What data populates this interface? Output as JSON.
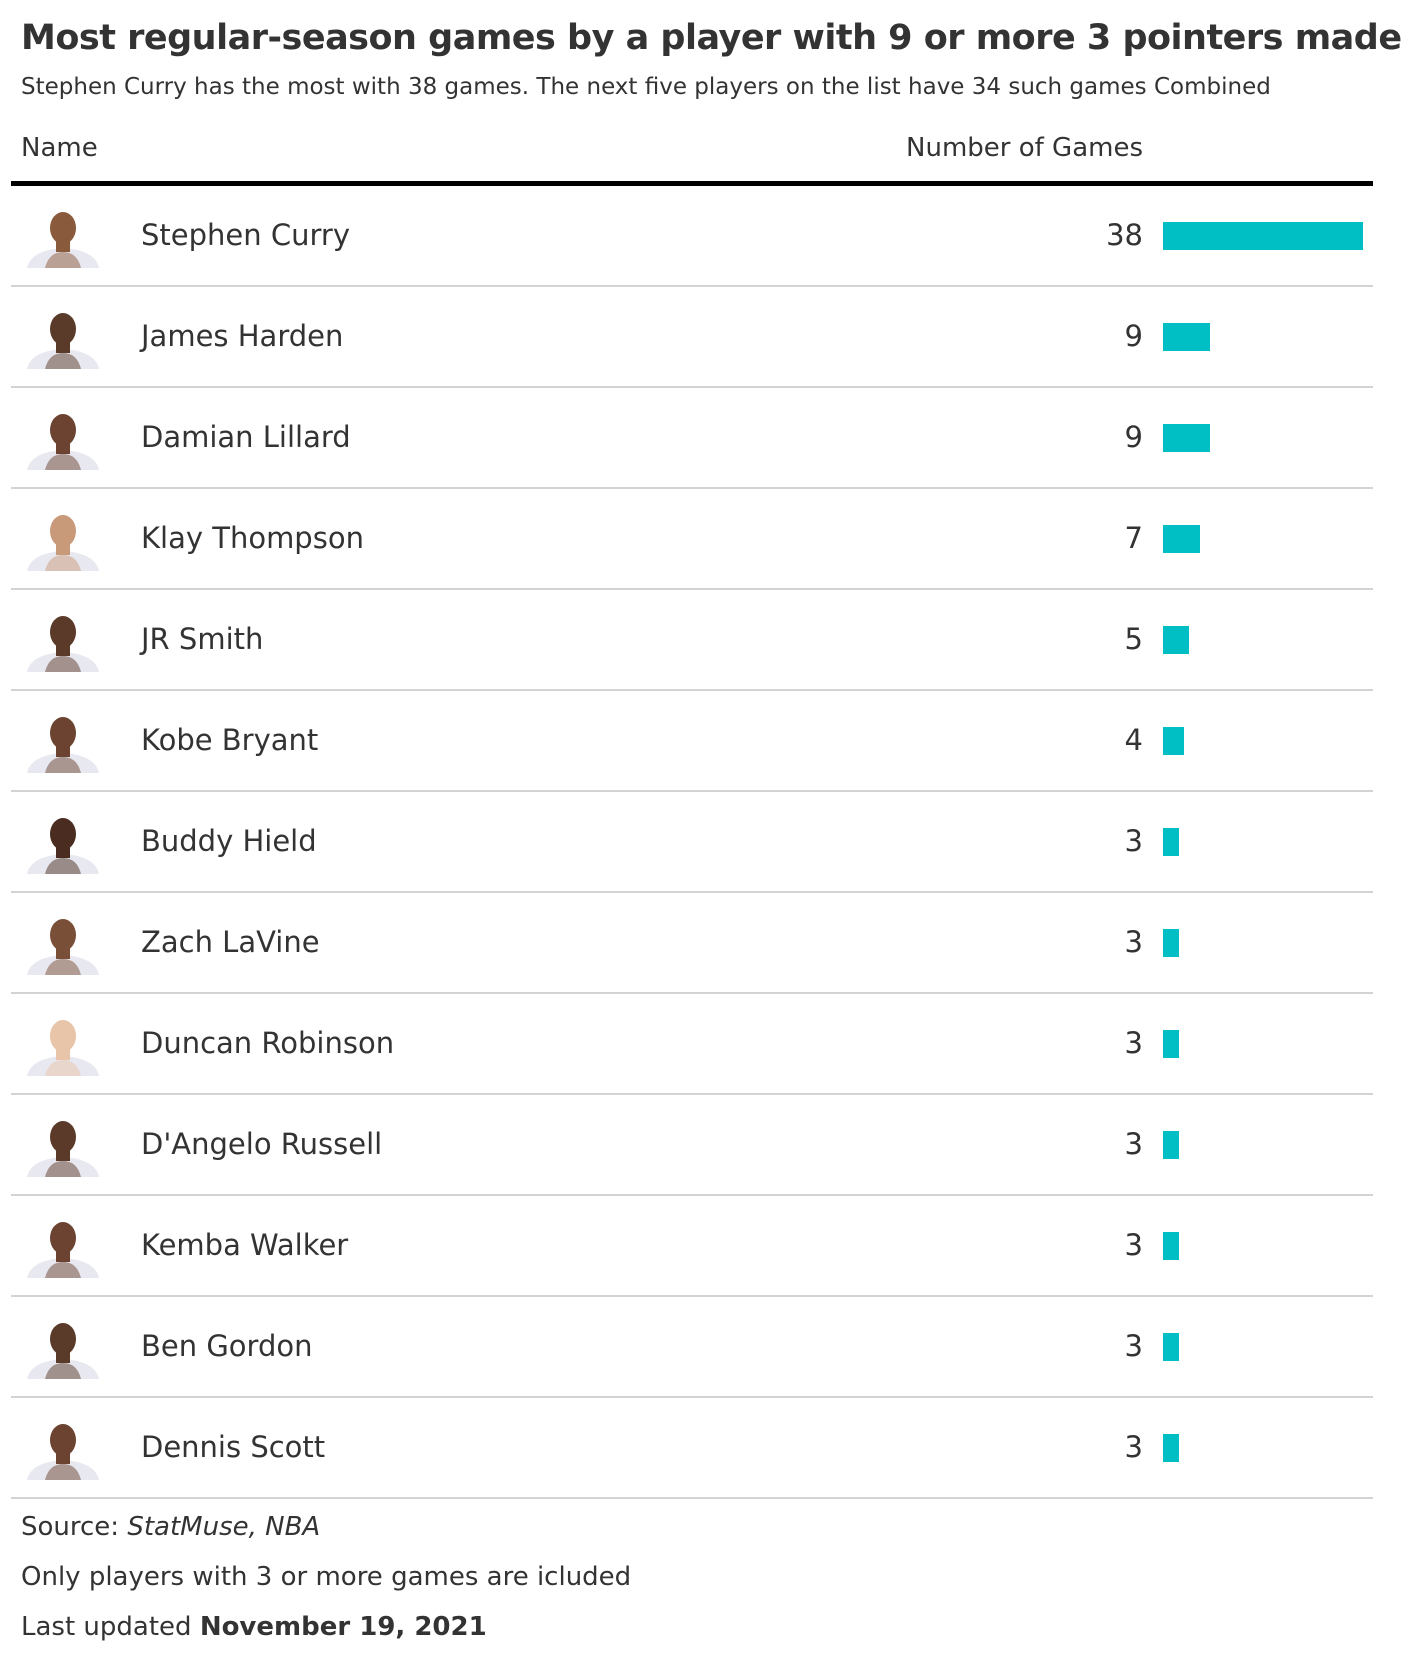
{
  "header": {
    "title": "Most regular-season games by a player with 9 or more 3 pointers made",
    "subtitle": "Stephen Curry has the most with 38 games. The next five players on the list have 34 such games Combined"
  },
  "table": {
    "columns": [
      "Name",
      "Number of Games"
    ],
    "bar_color": "#00bfc4",
    "rows": [
      [
        "Stephen Curry",
        38
      ],
      [
        "James Harden",
        9
      ],
      [
        "Damian Lillard",
        9
      ],
      [
        "Klay Thompson",
        7
      ],
      [
        "JR Smith",
        5
      ],
      [
        "Kobe Bryant",
        4
      ],
      [
        "Buddy Hield",
        3
      ],
      [
        "Zach LaVine",
        3
      ],
      [
        "Duncan Robinson",
        3
      ],
      [
        "D'Angelo Russell",
        3
      ],
      [
        "Kemba Walker",
        3
      ],
      [
        "Ben Gordon",
        3
      ],
      [
        "Dennis Scott",
        3
      ]
    ]
  },
  "footer": {
    "source_label": "Source:",
    "source": "StatMuse, NBA",
    "note": "Only players with 3 or more games are icluded",
    "updated_label": "Last updated",
    "updated_date": "November 19, 2021"
  }
}
